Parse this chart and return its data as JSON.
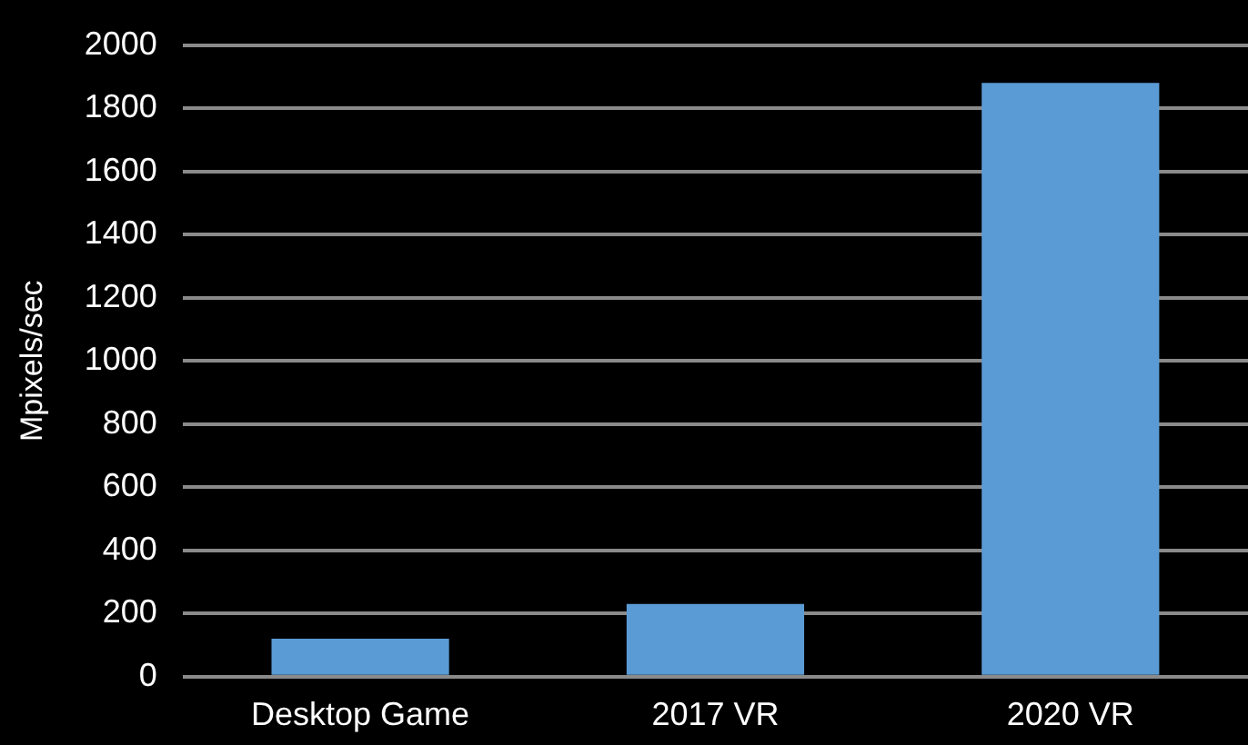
{
  "chart_data": {
    "type": "bar",
    "ylabel": "Mpixels/sec",
    "categories": [
      "Desktop Game",
      "2017 VR",
      "2020 VR"
    ],
    "values": [
      120,
      230,
      1880
    ],
    "color": "#5b9bd5",
    "ylim": [
      0,
      2000
    ],
    "yticks": [
      0,
      200,
      400,
      600,
      800,
      1000,
      1200,
      1400,
      1600,
      1800,
      2000
    ],
    "grid": "y",
    "legend": false
  }
}
